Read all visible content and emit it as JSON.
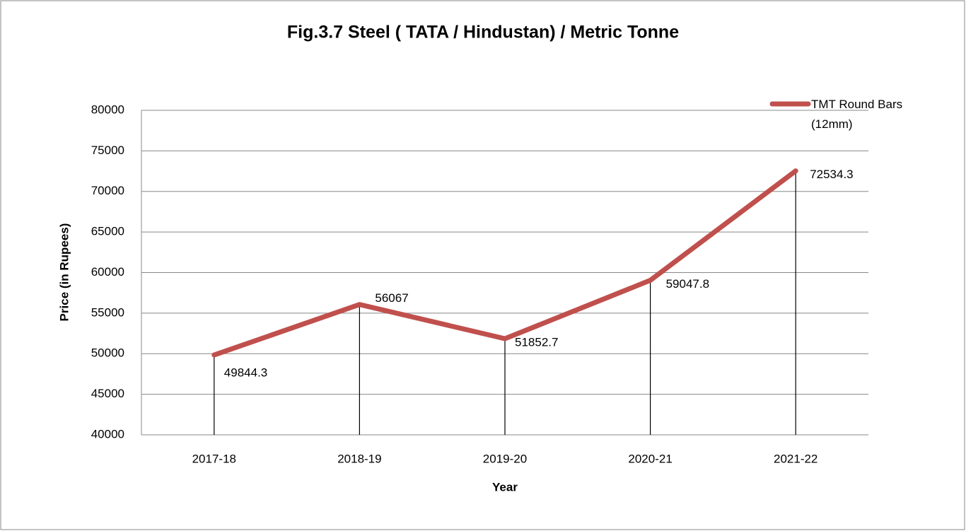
{
  "chart_data": {
    "type": "line",
    "title": "Fig.3.7   Steel ( TATA / Hindustan) / Metric Tonne",
    "x_label": "Year",
    "y_label": "Price (in Rupees)",
    "categories": [
      "2017-18",
      "2018-19",
      "2019-20",
      "2020-21",
      "2021-22"
    ],
    "series": [
      {
        "name": "TMT Round Bars (12mm)",
        "color": "#c0504d",
        "values": [
          49844.3,
          56067,
          51852.7,
          59047.8,
          72534.3
        ]
      }
    ],
    "ylim": [
      40000,
      80000
    ],
    "yticks": [
      40000,
      45000,
      50000,
      55000,
      60000,
      65000,
      70000,
      75000,
      80000
    ],
    "grid": true,
    "drop_lines": true,
    "data_labels": true,
    "legend": "top-right"
  }
}
